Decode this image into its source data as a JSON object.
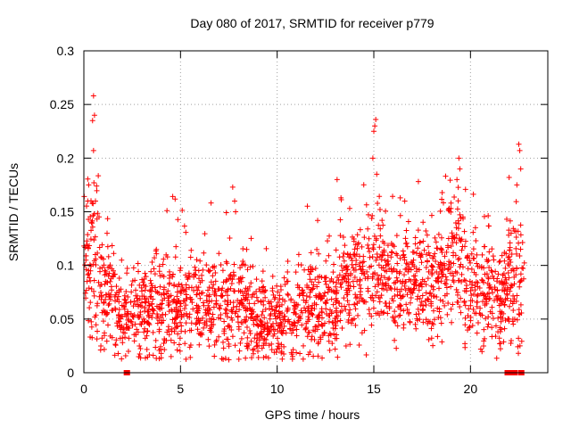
{
  "chart_data": {
    "type": "scatter",
    "title": "Day 080 of 2017, SRMTID for receiver p779",
    "xlabel": "GPS time / hours",
    "ylabel": "SRMTID / TECUs",
    "xlim": [
      0,
      24
    ],
    "ylim": [
      0,
      0.3
    ],
    "xticks": [
      0,
      5,
      10,
      15,
      20
    ],
    "xtick_labels": [
      "0",
      "5",
      "10",
      "15",
      "20"
    ],
    "yticks": [
      0,
      0.05,
      0.1,
      0.15,
      0.2,
      0.25,
      0.3
    ],
    "ytick_labels": [
      "0",
      "0.05",
      "0.1",
      "0.15",
      "0.2",
      "0.25",
      "0.3"
    ],
    "grid": true,
    "marker": "+",
    "color": "#ff0000",
    "series": [
      {
        "name": "SRMTID",
        "segments": [
          {
            "x_start": 0.0,
            "x_end": 0.3,
            "base": 0.095,
            "spread": 0.035
          },
          {
            "x_start": 0.3,
            "x_end": 0.8,
            "base": 0.1,
            "spread": 0.04
          },
          {
            "x_start": 0.8,
            "x_end": 1.6,
            "base": 0.075,
            "spread": 0.025
          },
          {
            "x_start": 1.6,
            "x_end": 3.5,
            "base": 0.055,
            "spread": 0.02
          },
          {
            "x_start": 3.5,
            "x_end": 4.5,
            "base": 0.06,
            "spread": 0.022
          },
          {
            "x_start": 4.5,
            "x_end": 7.5,
            "base": 0.06,
            "spread": 0.022
          },
          {
            "x_start": 7.5,
            "x_end": 8.5,
            "base": 0.065,
            "spread": 0.025
          },
          {
            "x_start": 8.5,
            "x_end": 11.0,
            "base": 0.05,
            "spread": 0.018
          },
          {
            "x_start": 11.0,
            "x_end": 13.2,
            "base": 0.062,
            "spread": 0.022
          },
          {
            "x_start": 13.2,
            "x_end": 15.5,
            "base": 0.09,
            "spread": 0.028
          },
          {
            "x_start": 15.5,
            "x_end": 17.5,
            "base": 0.085,
            "spread": 0.026
          },
          {
            "x_start": 17.5,
            "x_end": 18.5,
            "base": 0.082,
            "spread": 0.026
          },
          {
            "x_start": 18.5,
            "x_end": 19.7,
            "base": 0.11,
            "spread": 0.03
          },
          {
            "x_start": 19.7,
            "x_end": 21.8,
            "base": 0.075,
            "spread": 0.025
          },
          {
            "x_start": 21.8,
            "x_end": 22.8,
            "base": 0.085,
            "spread": 0.03
          }
        ],
        "peaks": [
          [
            0.2,
            0.16
          ],
          [
            0.25,
            0.175
          ],
          [
            0.45,
            0.235
          ],
          [
            0.5,
            0.258
          ],
          [
            0.55,
            0.24
          ],
          [
            0.5,
            0.207
          ],
          [
            0.6,
            0.16
          ],
          [
            1.2,
            0.13
          ],
          [
            4.3,
            0.151
          ],
          [
            7.7,
            0.173
          ],
          [
            7.8,
            0.16
          ],
          [
            7.85,
            0.15
          ],
          [
            13.1,
            0.18
          ],
          [
            13.3,
            0.163
          ],
          [
            15.05,
            0.23
          ],
          [
            15.1,
            0.236
          ],
          [
            15.0,
            0.225
          ],
          [
            14.95,
            0.2
          ],
          [
            15.15,
            0.185
          ],
          [
            16.6,
            0.16
          ],
          [
            19.4,
            0.2
          ],
          [
            19.45,
            0.19
          ],
          [
            19.3,
            0.18
          ],
          [
            22.5,
            0.213
          ],
          [
            22.55,
            0.207
          ],
          [
            22.6,
            0.19
          ],
          [
            22.0,
            0.182
          ],
          [
            22.4,
            0.175
          ],
          [
            7.5,
            0.012
          ],
          [
            9.0,
            0.02
          ],
          [
            4.0,
            0.018
          ],
          [
            2.0,
            0.028
          ],
          [
            13.0,
            0.022
          ]
        ],
        "zero_points": [
          2.2,
          2.25,
          21.9,
          21.95,
          22.2,
          22.25,
          22.3,
          22.6,
          22.65
        ]
      }
    ]
  }
}
